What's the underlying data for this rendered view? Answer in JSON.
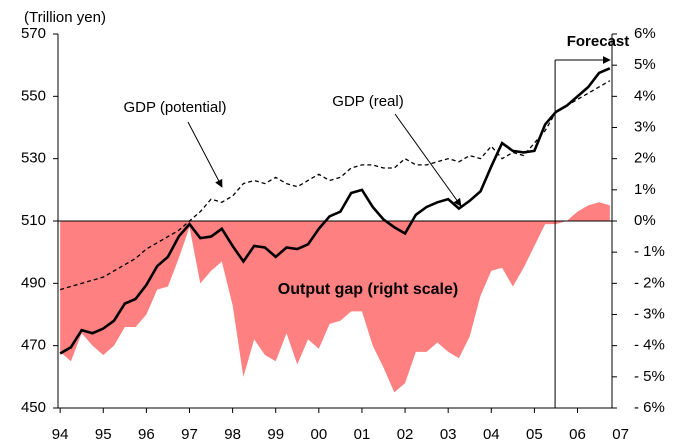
{
  "chart_data": {
    "type": "line",
    "y_axis_label": "(Trillion yen)",
    "annotations": [
      "GDP (potential)",
      "GDP (real)",
      "Forecast",
      "Output gap (right scale)"
    ],
    "x": [
      1994,
      1994.25,
      1994.5,
      1994.75,
      1995,
      1995.25,
      1995.5,
      1995.75,
      1996,
      1996.25,
      1996.5,
      1996.75,
      1997,
      1997.25,
      1997.5,
      1997.75,
      1998,
      1998.25,
      1998.5,
      1998.75,
      1999,
      1999.25,
      1999.5,
      1999.75,
      2000,
      2000.25,
      2000.5,
      2000.75,
      2001,
      2001.25,
      2001.5,
      2001.75,
      2002,
      2002.25,
      2002.5,
      2002.75,
      2003,
      2003.25,
      2003.5,
      2003.75,
      2004,
      2004.25,
      2004.5,
      2004.75,
      2005,
      2005.25,
      2005.5,
      2005.75,
      2006,
      2006.25,
      2006.5,
      2006.75
    ],
    "series": [
      {
        "name": "GDP (real)",
        "type": "line",
        "color": "#000000",
        "dash": false,
        "axis": "y",
        "values": [
          467.5,
          469.5,
          475,
          474,
          475.5,
          478,
          483.5,
          485,
          489.5,
          495.5,
          498.5,
          505,
          509,
          504.5,
          505,
          507.5,
          502,
          497,
          502,
          501.5,
          498.5,
          501.5,
          501,
          502.5,
          507.5,
          511.5,
          513,
          519,
          520,
          514.5,
          510.5,
          508,
          506,
          512,
          514.5,
          516,
          517,
          514,
          516.5,
          519.5,
          527.5,
          535,
          532.5,
          532,
          532.5,
          541,
          545,
          547,
          550,
          553,
          557.5,
          559
        ]
      },
      {
        "name": "GDP (potential)",
        "type": "line",
        "color": "#000000",
        "dash": true,
        "axis": "y",
        "values": [
          488,
          489,
          490,
          491,
          492,
          494,
          496,
          498,
          501,
          503,
          505,
          507,
          510,
          513,
          517,
          516,
          518,
          522,
          523,
          522,
          524,
          522,
          521,
          523,
          525,
          523,
          524,
          527,
          528,
          528,
          527,
          527,
          530,
          528,
          528,
          529,
          530,
          529,
          531,
          530,
          534,
          530,
          532,
          531,
          535,
          539,
          545,
          547,
          549,
          551,
          553,
          555
        ]
      },
      {
        "name": "Output gap (right scale)",
        "type": "area",
        "color": "#ff8080",
        "axis": "y2",
        "values": [
          -4.2,
          -4.5,
          -3.6,
          -4.0,
          -4.3,
          -4.0,
          -3.4,
          -3.4,
          -3.0,
          -2.2,
          -2.1,
          -1.2,
          -0.2,
          -2.0,
          -1.6,
          -1.3,
          -2.7,
          -5.0,
          -3.8,
          -4.3,
          -4.5,
          -3.6,
          -4.6,
          -3.8,
          -4.1,
          -3.3,
          -3.2,
          -2.9,
          -2.9,
          -4.0,
          -4.7,
          -5.5,
          -5.2,
          -4.2,
          -4.2,
          -3.9,
          -4.2,
          -4.4,
          -3.7,
          -2.4,
          -1.6,
          -1.5,
          -2.1,
          -1.5,
          -0.8,
          -0.1,
          -0.1,
          0.0,
          0.3,
          0.5,
          0.6,
          0.5
        ]
      }
    ],
    "forecast_start": 2005.48,
    "xlim": [
      1993.95,
      2006.8
    ],
    "xticks": [
      {
        "value": 1994,
        "label": "94"
      },
      {
        "value": 1995,
        "label": "95"
      },
      {
        "value": 1996,
        "label": "96"
      },
      {
        "value": 1997,
        "label": "97"
      },
      {
        "value": 1998,
        "label": "98"
      },
      {
        "value": 1999,
        "label": "99"
      },
      {
        "value": 2000,
        "label": "00"
      },
      {
        "value": 2001,
        "label": "01"
      },
      {
        "value": 2002,
        "label": "02"
      },
      {
        "value": 2003,
        "label": "03"
      },
      {
        "value": 2004,
        "label": "04"
      },
      {
        "value": 2005,
        "label": "05"
      },
      {
        "value": 2006,
        "label": "06"
      },
      {
        "value": 2007,
        "label": "07"
      }
    ],
    "ylim": [
      450,
      570
    ],
    "yticks": [
      450,
      470,
      490,
      510,
      530,
      550,
      570
    ],
    "y2lim": [
      -6,
      6
    ],
    "y2ticks": [
      {
        "value": -6,
        "label": "- 6%"
      },
      {
        "value": -5,
        "label": "- 5%"
      },
      {
        "value": -4,
        "label": "- 4%"
      },
      {
        "value": -3,
        "label": "- 3%"
      },
      {
        "value": -2,
        "label": "- 2%"
      },
      {
        "value": -1,
        "label": "- 1%"
      },
      {
        "value": 0,
        "label": "0%"
      },
      {
        "value": 1,
        "label": "1%"
      },
      {
        "value": 2,
        "label": "2%"
      },
      {
        "value": 3,
        "label": "3%"
      },
      {
        "value": 4,
        "label": "4%"
      },
      {
        "value": 5,
        "label": "5%"
      },
      {
        "value": 6,
        "label": "6%"
      }
    ],
    "grid": false
  }
}
